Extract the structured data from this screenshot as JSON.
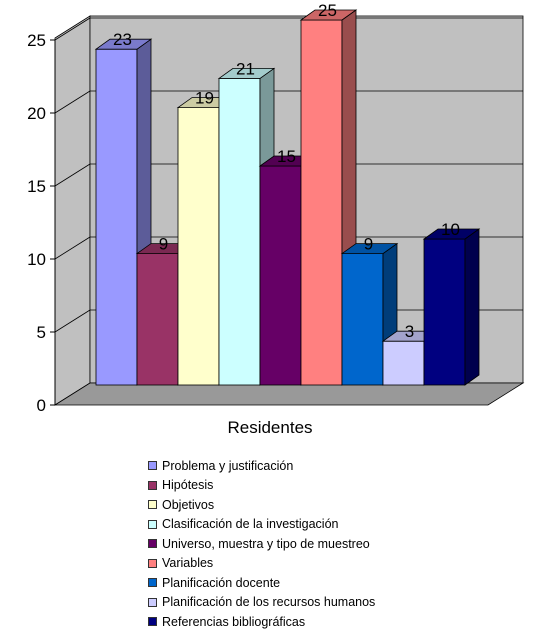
{
  "chart_data": {
    "type": "bar",
    "xlabel": "Residentes",
    "ylabel": "",
    "ylim": [
      0,
      25
    ],
    "yticks": [
      0,
      5,
      10,
      15,
      20,
      25
    ],
    "grid": true,
    "legend_position": "bottom",
    "style": "3d",
    "series": [
      {
        "name": "Problema y justificación",
        "values": [
          23
        ],
        "color": "#9999ff"
      },
      {
        "name": "Hipótesis",
        "values": [
          9
        ],
        "color": "#993366"
      },
      {
        "name": "Objetivos",
        "values": [
          19
        ],
        "color": "#ffffcc"
      },
      {
        "name": "Clasificación de la investigación",
        "values": [
          21
        ],
        "color": "#ccffff"
      },
      {
        "name": "Universo, muestra y tipo de muestreo",
        "values": [
          15
        ],
        "color": "#660066"
      },
      {
        "name": "Variables",
        "values": [
          25
        ],
        "color": "#ff8080"
      },
      {
        "name": "Planificación docente",
        "values": [
          9
        ],
        "color": "#0066cc"
      },
      {
        "name": "Planificación de los recursos humanos",
        "values": [
          3
        ],
        "color": "#ccccff"
      },
      {
        "name": "Referencias bibliográficas",
        "values": [
          10
        ],
        "color": "#000080"
      }
    ]
  }
}
